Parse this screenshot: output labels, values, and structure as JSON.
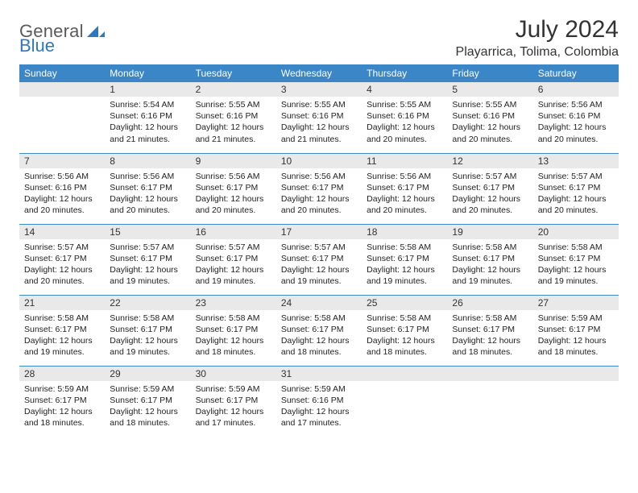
{
  "logo": {
    "general": "General",
    "blue": "Blue"
  },
  "title": "July 2024",
  "location": "Playarrica, Tolima, Colombia",
  "colors": {
    "header_bg": "#3b86c6",
    "header_text": "#ffffff",
    "daynum_bg": "#e9e9e9",
    "border": "#3b86c6",
    "logo_gray": "#5a5a5a",
    "logo_blue": "#2f78bd"
  },
  "day_headers": [
    "Sunday",
    "Monday",
    "Tuesday",
    "Wednesday",
    "Thursday",
    "Friday",
    "Saturday"
  ],
  "weeks": [
    [
      {
        "n": "",
        "sunrise": "",
        "sunset": "",
        "daylight": ""
      },
      {
        "n": "1",
        "sunrise": "Sunrise: 5:54 AM",
        "sunset": "Sunset: 6:16 PM",
        "daylight": "Daylight: 12 hours and 21 minutes."
      },
      {
        "n": "2",
        "sunrise": "Sunrise: 5:55 AM",
        "sunset": "Sunset: 6:16 PM",
        "daylight": "Daylight: 12 hours and 21 minutes."
      },
      {
        "n": "3",
        "sunrise": "Sunrise: 5:55 AM",
        "sunset": "Sunset: 6:16 PM",
        "daylight": "Daylight: 12 hours and 21 minutes."
      },
      {
        "n": "4",
        "sunrise": "Sunrise: 5:55 AM",
        "sunset": "Sunset: 6:16 PM",
        "daylight": "Daylight: 12 hours and 20 minutes."
      },
      {
        "n": "5",
        "sunrise": "Sunrise: 5:55 AM",
        "sunset": "Sunset: 6:16 PM",
        "daylight": "Daylight: 12 hours and 20 minutes."
      },
      {
        "n": "6",
        "sunrise": "Sunrise: 5:56 AM",
        "sunset": "Sunset: 6:16 PM",
        "daylight": "Daylight: 12 hours and 20 minutes."
      }
    ],
    [
      {
        "n": "7",
        "sunrise": "Sunrise: 5:56 AM",
        "sunset": "Sunset: 6:16 PM",
        "daylight": "Daylight: 12 hours and 20 minutes."
      },
      {
        "n": "8",
        "sunrise": "Sunrise: 5:56 AM",
        "sunset": "Sunset: 6:17 PM",
        "daylight": "Daylight: 12 hours and 20 minutes."
      },
      {
        "n": "9",
        "sunrise": "Sunrise: 5:56 AM",
        "sunset": "Sunset: 6:17 PM",
        "daylight": "Daylight: 12 hours and 20 minutes."
      },
      {
        "n": "10",
        "sunrise": "Sunrise: 5:56 AM",
        "sunset": "Sunset: 6:17 PM",
        "daylight": "Daylight: 12 hours and 20 minutes."
      },
      {
        "n": "11",
        "sunrise": "Sunrise: 5:56 AM",
        "sunset": "Sunset: 6:17 PM",
        "daylight": "Daylight: 12 hours and 20 minutes."
      },
      {
        "n": "12",
        "sunrise": "Sunrise: 5:57 AM",
        "sunset": "Sunset: 6:17 PM",
        "daylight": "Daylight: 12 hours and 20 minutes."
      },
      {
        "n": "13",
        "sunrise": "Sunrise: 5:57 AM",
        "sunset": "Sunset: 6:17 PM",
        "daylight": "Daylight: 12 hours and 20 minutes."
      }
    ],
    [
      {
        "n": "14",
        "sunrise": "Sunrise: 5:57 AM",
        "sunset": "Sunset: 6:17 PM",
        "daylight": "Daylight: 12 hours and 20 minutes."
      },
      {
        "n": "15",
        "sunrise": "Sunrise: 5:57 AM",
        "sunset": "Sunset: 6:17 PM",
        "daylight": "Daylight: 12 hours and 19 minutes."
      },
      {
        "n": "16",
        "sunrise": "Sunrise: 5:57 AM",
        "sunset": "Sunset: 6:17 PM",
        "daylight": "Daylight: 12 hours and 19 minutes."
      },
      {
        "n": "17",
        "sunrise": "Sunrise: 5:57 AM",
        "sunset": "Sunset: 6:17 PM",
        "daylight": "Daylight: 12 hours and 19 minutes."
      },
      {
        "n": "18",
        "sunrise": "Sunrise: 5:58 AM",
        "sunset": "Sunset: 6:17 PM",
        "daylight": "Daylight: 12 hours and 19 minutes."
      },
      {
        "n": "19",
        "sunrise": "Sunrise: 5:58 AM",
        "sunset": "Sunset: 6:17 PM",
        "daylight": "Daylight: 12 hours and 19 minutes."
      },
      {
        "n": "20",
        "sunrise": "Sunrise: 5:58 AM",
        "sunset": "Sunset: 6:17 PM",
        "daylight": "Daylight: 12 hours and 19 minutes."
      }
    ],
    [
      {
        "n": "21",
        "sunrise": "Sunrise: 5:58 AM",
        "sunset": "Sunset: 6:17 PM",
        "daylight": "Daylight: 12 hours and 19 minutes."
      },
      {
        "n": "22",
        "sunrise": "Sunrise: 5:58 AM",
        "sunset": "Sunset: 6:17 PM",
        "daylight": "Daylight: 12 hours and 19 minutes."
      },
      {
        "n": "23",
        "sunrise": "Sunrise: 5:58 AM",
        "sunset": "Sunset: 6:17 PM",
        "daylight": "Daylight: 12 hours and 18 minutes."
      },
      {
        "n": "24",
        "sunrise": "Sunrise: 5:58 AM",
        "sunset": "Sunset: 6:17 PM",
        "daylight": "Daylight: 12 hours and 18 minutes."
      },
      {
        "n": "25",
        "sunrise": "Sunrise: 5:58 AM",
        "sunset": "Sunset: 6:17 PM",
        "daylight": "Daylight: 12 hours and 18 minutes."
      },
      {
        "n": "26",
        "sunrise": "Sunrise: 5:58 AM",
        "sunset": "Sunset: 6:17 PM",
        "daylight": "Daylight: 12 hours and 18 minutes."
      },
      {
        "n": "27",
        "sunrise": "Sunrise: 5:59 AM",
        "sunset": "Sunset: 6:17 PM",
        "daylight": "Daylight: 12 hours and 18 minutes."
      }
    ],
    [
      {
        "n": "28",
        "sunrise": "Sunrise: 5:59 AM",
        "sunset": "Sunset: 6:17 PM",
        "daylight": "Daylight: 12 hours and 18 minutes."
      },
      {
        "n": "29",
        "sunrise": "Sunrise: 5:59 AM",
        "sunset": "Sunset: 6:17 PM",
        "daylight": "Daylight: 12 hours and 18 minutes."
      },
      {
        "n": "30",
        "sunrise": "Sunrise: 5:59 AM",
        "sunset": "Sunset: 6:17 PM",
        "daylight": "Daylight: 12 hours and 17 minutes."
      },
      {
        "n": "31",
        "sunrise": "Sunrise: 5:59 AM",
        "sunset": "Sunset: 6:16 PM",
        "daylight": "Daylight: 12 hours and 17 minutes."
      },
      {
        "n": "",
        "sunrise": "",
        "sunset": "",
        "daylight": ""
      },
      {
        "n": "",
        "sunrise": "",
        "sunset": "",
        "daylight": ""
      },
      {
        "n": "",
        "sunrise": "",
        "sunset": "",
        "daylight": ""
      }
    ]
  ]
}
